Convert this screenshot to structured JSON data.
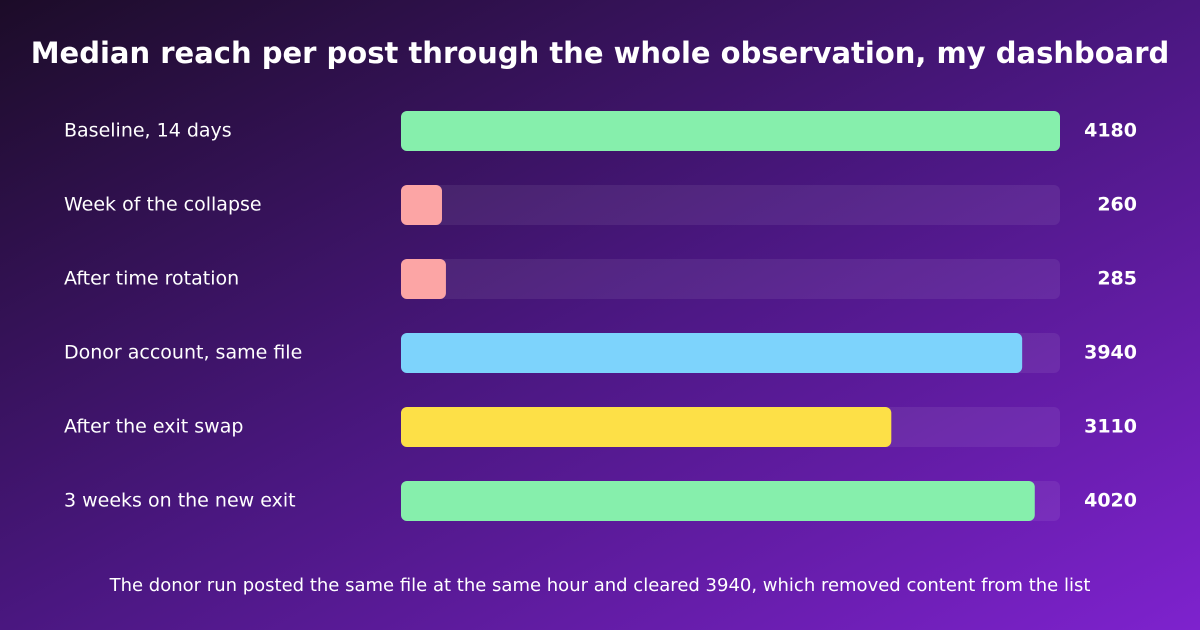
{
  "chart_data": {
    "type": "bar",
    "orientation": "horizontal",
    "title": "Median reach per post through the whole observation, my dashboard",
    "categories": [
      "Baseline, 14 days",
      "Week of the collapse",
      "After time rotation",
      "Donor account, same file",
      "After the exit swap",
      "3 weeks on the new exit"
    ],
    "values": [
      4180,
      260,
      285,
      3940,
      3110,
      4020
    ],
    "colors": [
      "#86efac",
      "#fca5a5",
      "#fca5a5",
      "#7dd3fc",
      "#fde047",
      "#86efac"
    ],
    "note": "The donor run posted the same file at the same hour and cleared 3940, which removed content from the list"
  }
}
